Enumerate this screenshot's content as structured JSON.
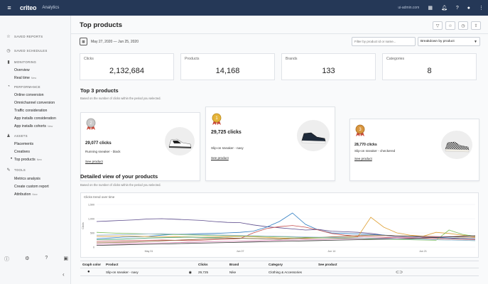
{
  "topbar": {
    "logo": "criteo",
    "app_name": "Analytics",
    "user": "ui-admin.com"
  },
  "sidebar": {
    "saved_reports": "SAVED REPORTS",
    "saved_schedules": "SAVED SCHEDULES",
    "monitoring": "MONITORING",
    "overview": "Overview",
    "realtime": "Real time",
    "performance": "PERFORMANCE",
    "online_conversion": "Online conversion",
    "omnichannel_conversion": "Omnichannel conversion",
    "traffic_consideration": "Traffic consideration",
    "app_installs_consideration": "App installs consideration",
    "app_installs_cohorts": "App installs cohorts",
    "assets": "ASSETS",
    "placements": "Placements",
    "creatives": "Creatives",
    "top_products": "Top products",
    "tools": "TOOLS",
    "metrics_analysis": "Metrics analysis",
    "create_custom_report": "Create custom report",
    "attribution": "Attribution",
    "new_tag": "New"
  },
  "page": {
    "title": "Top products",
    "date_range": "May 27, 2020 — Jun 25, 2020",
    "filter_placeholder": "Filter by product id or name...",
    "breakdown": "Breakdown by product"
  },
  "kpis": [
    {
      "label": "Clicks",
      "value": "2,132,684"
    },
    {
      "label": "Products",
      "value": "14,168"
    },
    {
      "label": "Brands",
      "value": "133"
    },
    {
      "label": "Categories",
      "value": "8"
    }
  ],
  "top3": {
    "title": "Top 3 products",
    "subtitle": "Based on the number of clicks within the period you selected.",
    "see_product": "See product",
    "cards": [
      {
        "rank": "2",
        "clicks": "29,077 clicks",
        "name": "Running sneaker - black"
      },
      {
        "rank": "1",
        "clicks": "29,725 clicks",
        "name": "Slip-on sneaker - navy"
      },
      {
        "rank": "3",
        "clicks": "28,770 clicks",
        "name": "Slip-on sneaker - checkered"
      }
    ]
  },
  "detail": {
    "title": "Detailed view of your products",
    "subtitle": "Based on the number of clicks within the period you selected.",
    "chart_title": "Clicks trend over time"
  },
  "table": {
    "headers": [
      "Graph color",
      "Product",
      "Clicks",
      "Brand",
      "Category",
      "See product"
    ],
    "rows": [
      {
        "product": "Slip-on sneaker - navy",
        "clicks": "29,725",
        "brand": "Nike",
        "category": "Clothing & Accessories"
      }
    ]
  },
  "chart_data": {
    "type": "line",
    "title": "Clicks trend over time",
    "ylabel": "Clicks",
    "ylim": [
      0,
      1500
    ],
    "yticks": [
      "1,500",
      "1,000",
      "500",
      "0"
    ],
    "xticks": [
      "May 31",
      "Jun 07",
      "Jun 14",
      "Jun 21"
    ],
    "x_count": 30,
    "colors": [
      "#5b4a8b",
      "#2f7dc2",
      "#e0a33a",
      "#c44e4e",
      "#3a9b6f",
      "#8b5a2b",
      "#7cbf5a",
      "#d67fb0",
      "#333333",
      "#9ab7d9"
    ],
    "series": [
      {
        "values": [
          900,
          920,
          940,
          960,
          990,
          1000,
          980,
          960,
          940,
          900,
          870,
          860,
          780,
          720,
          680,
          640,
          600,
          620,
          560,
          540,
          520,
          480,
          420,
          360,
          380,
          340,
          330,
          320,
          300,
          290
        ]
      },
      {
        "values": [
          300,
          320,
          350,
          360,
          380,
          420,
          450,
          460,
          470,
          480,
          500,
          520,
          560,
          700,
          900,
          1200,
          800,
          600,
          500,
          480,
          460,
          440,
          420,
          400,
          380,
          360,
          340,
          320,
          300,
          280
        ]
      },
      {
        "values": [
          380,
          380,
          390,
          380,
          370,
          360,
          370,
          360,
          350,
          360,
          370,
          380,
          360,
          340,
          320,
          310,
          300,
          320,
          330,
          340,
          360,
          1050,
          700,
          500,
          420,
          380,
          520,
          480,
          420,
          360
        ]
      },
      {
        "values": [
          200,
          210,
          220,
          230,
          240,
          250,
          240,
          230,
          240,
          260,
          280,
          300,
          500,
          650,
          720,
          760,
          700,
          600,
          480,
          420,
          380,
          360,
          350,
          330,
          320,
          310,
          300,
          290,
          280,
          270
        ]
      },
      {
        "values": [
          260,
          270,
          280,
          300,
          320,
          330,
          340,
          350,
          340,
          330,
          320,
          310,
          300,
          290,
          280,
          300,
          320,
          330,
          340,
          330,
          320,
          310,
          300,
          290,
          280,
          270,
          260,
          250,
          240,
          230
        ]
      },
      {
        "values": [
          150,
          160,
          170,
          180,
          200,
          220,
          240,
          260,
          280,
          300,
          320,
          310,
          300,
          290,
          280,
          300,
          320,
          340,
          360,
          380,
          400,
          420,
          410,
          400,
          390,
          380,
          370,
          360,
          350,
          340
        ]
      },
      {
        "values": [
          520,
          500,
          480,
          470,
          460,
          450,
          440,
          430,
          420,
          410,
          400,
          390,
          380,
          370,
          360,
          350,
          340,
          330,
          320,
          310,
          300,
          290,
          280,
          270,
          260,
          250,
          240,
          600,
          450,
          380
        ]
      },
      {
        "values": [
          100,
          110,
          120,
          130,
          140,
          150,
          160,
          170,
          180,
          190,
          200,
          210,
          220,
          230,
          240,
          250,
          260,
          270,
          280,
          290,
          300,
          310,
          320,
          330,
          340,
          350,
          360,
          370,
          380,
          390
        ]
      },
      {
        "values": [
          60,
          70,
          80,
          90,
          100,
          110,
          120,
          130,
          140,
          150,
          160,
          170,
          180,
          190,
          200,
          210,
          220,
          230,
          240,
          250,
          260,
          270,
          280,
          290,
          300,
          320,
          340,
          360,
          380,
          400
        ]
      },
      {
        "values": [
          420,
          430,
          440,
          450,
          460,
          470,
          460,
          450,
          440,
          430,
          420,
          410,
          400,
          390,
          380,
          370,
          360,
          350,
          340,
          330,
          320,
          310,
          300,
          290,
          280,
          270,
          260,
          250,
          240,
          230
        ]
      }
    ]
  }
}
